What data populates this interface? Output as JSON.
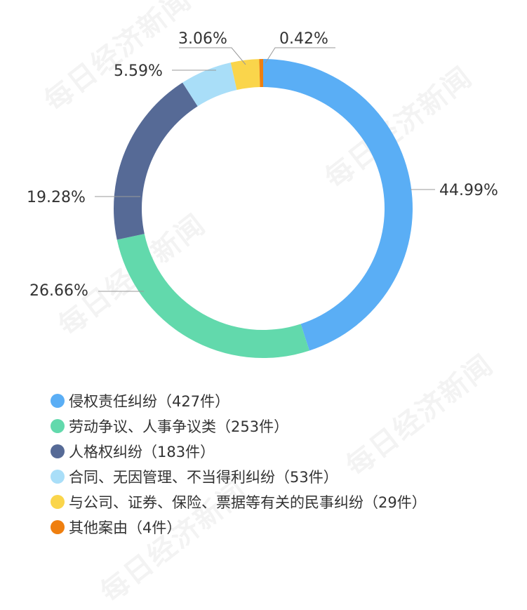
{
  "watermark": "每日经济新闻",
  "chart_data": {
    "type": "pie",
    "donut": true,
    "title": "",
    "legend_position": "bottom-left",
    "slices": [
      {
        "label": "侵权责任纠纷（427件）",
        "count": 427,
        "percent": 44.99,
        "percent_label": "44.99%",
        "color": "#5aaef5"
      },
      {
        "label": "劳动争议、人事争议类（253件）",
        "count": 253,
        "percent": 26.66,
        "percent_label": "26.66%",
        "color": "#62d9ac"
      },
      {
        "label": "人格权纠纷（183件）",
        "count": 183,
        "percent": 19.28,
        "percent_label": "19.28%",
        "color": "#566a96"
      },
      {
        "label": "合同、无因管理、不当得利纠纷（53件）",
        "count": 53,
        "percent": 5.59,
        "percent_label": "5.59%",
        "color": "#a9def8"
      },
      {
        "label": "与公司、证券、保险、票据等有关的民事纠纷（29件）",
        "count": 29,
        "percent": 3.06,
        "percent_label": "3.06%",
        "color": "#fad54b"
      },
      {
        "label": "其他案由（4件）",
        "count": 4,
        "percent": 0.42,
        "percent_label": "0.42%",
        "color": "#ef7f0f"
      }
    ]
  }
}
